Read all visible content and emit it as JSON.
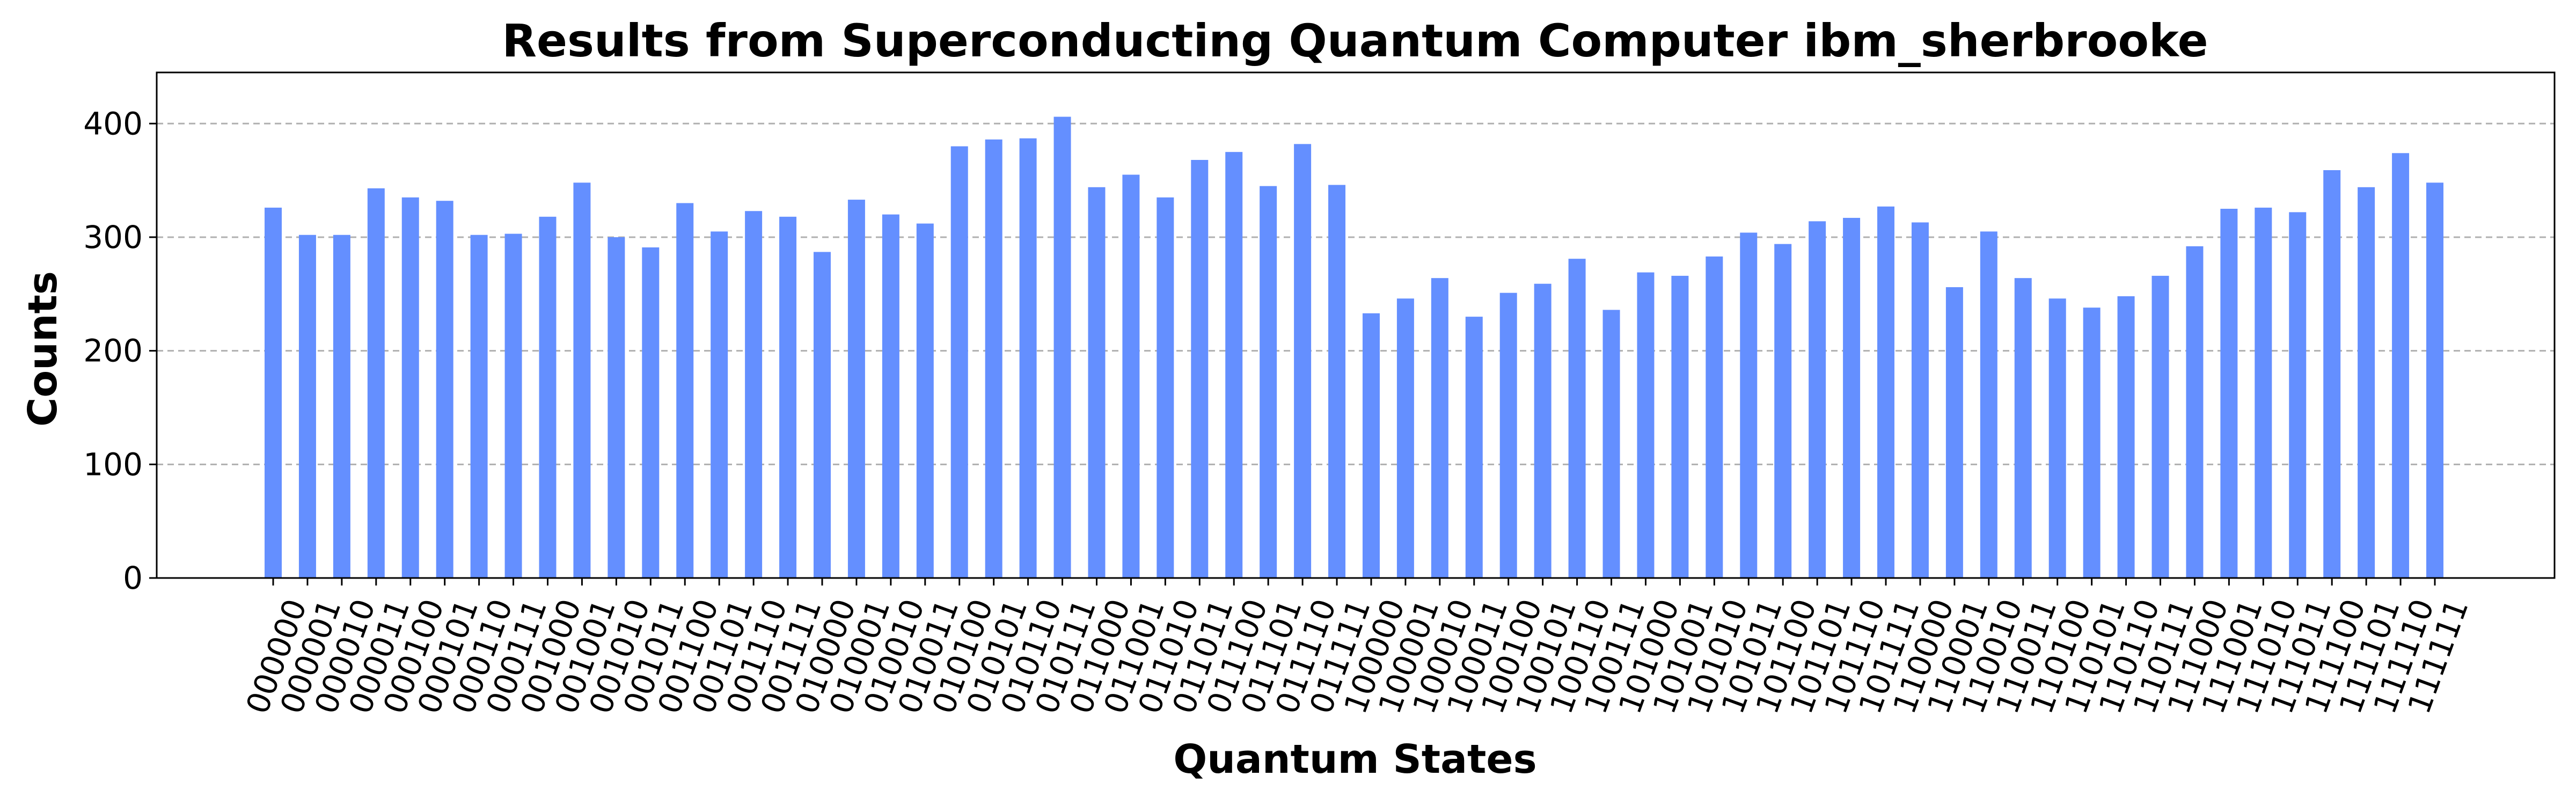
{
  "chart_data": {
    "type": "bar",
    "title": "Results from Superconducting Quantum Computer ibm_sherbrooke",
    "xlabel": "Quantum States",
    "ylabel": "Counts",
    "ylim": [
      0,
      445
    ],
    "yticks": [
      0,
      100,
      200,
      300,
      400
    ],
    "grid": "y",
    "bar_color": "#648fff",
    "categories": [
      "000000",
      "000001",
      "000010",
      "000011",
      "000100",
      "000101",
      "000110",
      "000111",
      "001000",
      "001001",
      "001010",
      "001011",
      "001100",
      "001101",
      "001110",
      "001111",
      "010000",
      "010001",
      "010010",
      "010011",
      "010100",
      "010101",
      "010110",
      "010111",
      "011000",
      "011001",
      "011010",
      "011011",
      "011100",
      "011101",
      "011110",
      "011111",
      "100000",
      "100001",
      "100010",
      "100011",
      "100100",
      "100101",
      "100110",
      "100111",
      "101000",
      "101001",
      "101010",
      "101011",
      "101100",
      "101101",
      "101110",
      "101111",
      "110000",
      "110001",
      "110010",
      "110011",
      "110100",
      "110101",
      "110110",
      "110111",
      "111000",
      "111001",
      "111010",
      "111011",
      "111100",
      "111101",
      "111110",
      "111111"
    ],
    "values": [
      326,
      302,
      302,
      343,
      335,
      332,
      302,
      303,
      318,
      348,
      300,
      291,
      330,
      305,
      323,
      318,
      287,
      333,
      320,
      312,
      380,
      386,
      387,
      406,
      344,
      355,
      335,
      368,
      375,
      345,
      382,
      346,
      233,
      246,
      264,
      230,
      251,
      259,
      281,
      236,
      269,
      266,
      283,
      304,
      294,
      314,
      317,
      327,
      313,
      256,
      305,
      264,
      246,
      238,
      248,
      266,
      292,
      325,
      326,
      322,
      359,
      344,
      374,
      348
    ]
  }
}
